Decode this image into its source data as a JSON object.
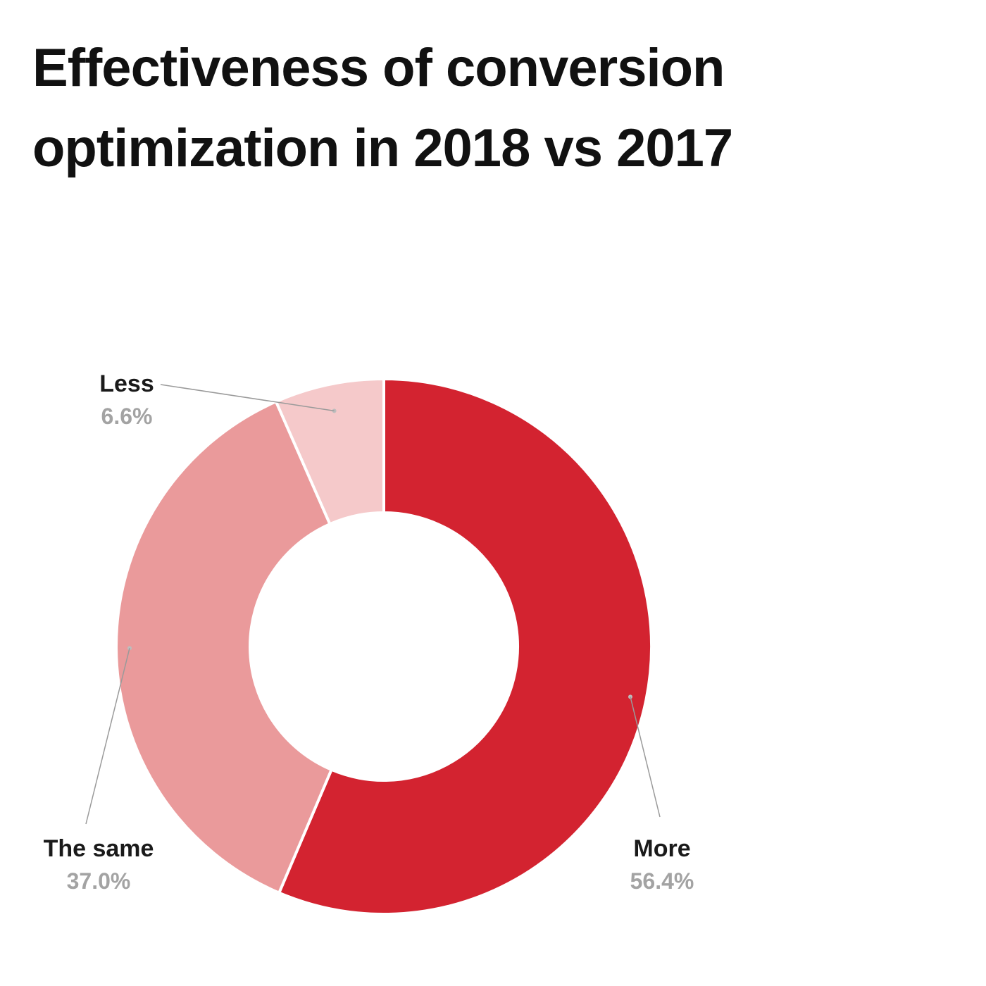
{
  "chart_data": {
    "type": "pie",
    "title": "Effectiveness of conversion optimization in 2018 vs 2017",
    "donut": true,
    "slices": [
      {
        "label": "More",
        "value": 56.4,
        "display": "56.4%",
        "color": "#d32330"
      },
      {
        "label": "The same",
        "value": 37.0,
        "display": "37.0%",
        "color": "#ea9a9b"
      },
      {
        "label": "Less",
        "value": 6.6,
        "display": "6.6%",
        "color": "#f5c9ca"
      }
    ],
    "legend": "none"
  }
}
